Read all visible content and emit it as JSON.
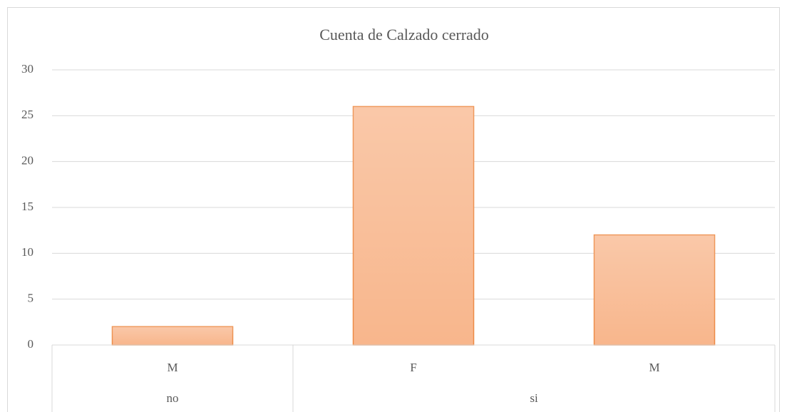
{
  "chart_data": {
    "type": "bar",
    "title": "Cuenta de Calzado cerrado",
    "groups": [
      {
        "name": "no",
        "categories": [
          "M"
        ],
        "values": [
          2
        ]
      },
      {
        "name": "si",
        "categories": [
          "F",
          "M"
        ],
        "values": [
          26,
          12
        ]
      }
    ],
    "color": "#f8b68c",
    "edge_color": "#ed8a45",
    "ylim": [
      0,
      30
    ],
    "yticks": [
      0,
      5,
      10,
      15,
      20,
      25,
      30
    ],
    "grid": true
  }
}
